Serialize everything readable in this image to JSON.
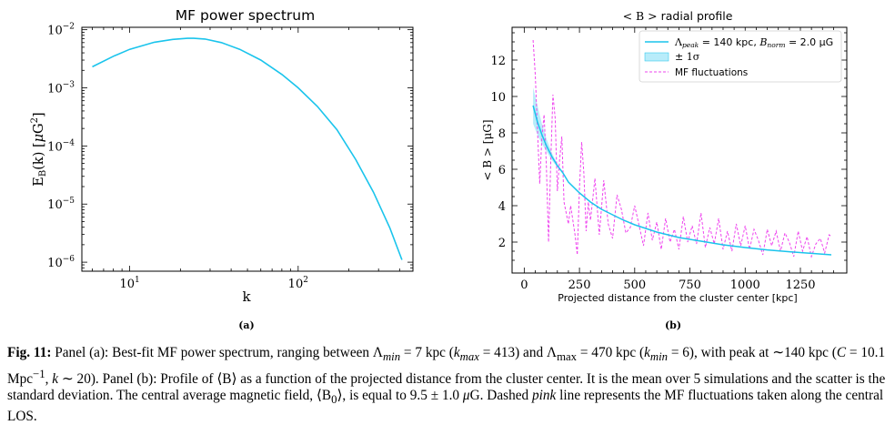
{
  "colors": {
    "model": "#1ac4ec",
    "band": "#b8ecfa",
    "fluct": "#ee44ee",
    "axis": "#000000"
  },
  "chart_data": [
    {
      "type": "line",
      "title": "MF power spectrum",
      "xlabel": "k",
      "ylabel": "E_B(k) [μG²]",
      "xscale": "log",
      "yscale": "log",
      "xlim": [
        5.2,
        480
      ],
      "ylim": [
        7e-07,
        0.011
      ],
      "xticks": [
        {
          "value": 10,
          "label": "10",
          "exp": "1"
        },
        {
          "value": 100,
          "label": "10",
          "exp": "2"
        }
      ],
      "yticks": [
        {
          "value": 0.01,
          "label": "10",
          "exp": "−2"
        },
        {
          "value": 0.001,
          "label": "10",
          "exp": "−3"
        },
        {
          "value": 0.0001,
          "label": "10",
          "exp": "−4"
        },
        {
          "value": 1e-05,
          "label": "10",
          "exp": "−5"
        },
        {
          "value": 1e-06,
          "label": "10",
          "exp": "−6"
        }
      ],
      "series": [
        {
          "x": [
            6,
            8,
            10,
            14,
            18,
            22,
            24,
            28,
            35,
            45,
            60,
            80,
            100,
            130,
            170,
            220,
            280,
            350,
            413
          ],
          "y": [
            0.0023,
            0.0035,
            0.0046,
            0.0061,
            0.0068,
            0.0071,
            0.0071,
            0.0069,
            0.006,
            0.0046,
            0.003,
            0.0017,
            0.001,
            0.00048,
            0.00019,
            5.8e-05,
            1.6e-05,
            3.9e-06,
            1.1e-06
          ]
        }
      ],
      "panel_label": "(a)"
    },
    {
      "type": "line",
      "title": "< B > radial profile",
      "xlabel": "Projected distance from the cluster center [kpc]",
      "ylabel": "< B > [μG]",
      "xlim": [
        -55,
        1460
      ],
      "ylim": [
        0.3,
        13.8
      ],
      "xticks": [
        0,
        250,
        500,
        750,
        1000,
        1250
      ],
      "yticks": [
        2,
        4,
        6,
        8,
        10,
        12
      ],
      "grid": false,
      "legend": {
        "position": "top-right",
        "entries": [
          {
            "prefix": "Λ",
            "sub": "peak",
            "mid": " = 140 kpc, ",
            "b": "B",
            "bsub": "norm",
            "suffix": " = 2.0 μG"
          },
          {
            "text": "± 1σ"
          },
          {
            "text": "MF fluctuations"
          }
        ]
      },
      "series": [
        {
          "name": "model",
          "x": [
            40,
            60,
            80,
            100,
            125,
            150,
            175,
            200,
            250,
            300,
            350,
            400,
            450,
            500,
            600,
            700,
            800,
            900,
            1000,
            1100,
            1200,
            1300,
            1390
          ],
          "y": [
            9.5,
            8.6,
            7.9,
            7.3,
            6.7,
            6.2,
            5.8,
            5.3,
            4.7,
            4.2,
            3.8,
            3.5,
            3.2,
            2.95,
            2.55,
            2.25,
            2.05,
            1.85,
            1.7,
            1.57,
            1.47,
            1.38,
            1.3
          ]
        },
        {
          "name": "band_upper",
          "x": [
            40,
            60,
            80,
            100,
            125,
            150
          ],
          "y": [
            10.5,
            9.5,
            8.5,
            7.7,
            6.9,
            6.3
          ]
        },
        {
          "name": "band_lower",
          "x": [
            40,
            60,
            80,
            100,
            125,
            150
          ],
          "y": [
            8.5,
            7.9,
            7.4,
            7.0,
            6.5,
            6.1
          ]
        },
        {
          "name": "fluctuations",
          "x": [
            40,
            50,
            60,
            70,
            80,
            90,
            100,
            110,
            120,
            130,
            140,
            150,
            160,
            170,
            180,
            190,
            200,
            210,
            220,
            230,
            240,
            250,
            260,
            270,
            280,
            290,
            300,
            320,
            340,
            360,
            380,
            400,
            420,
            440,
            460,
            480,
            500,
            520,
            540,
            560,
            580,
            600,
            620,
            640,
            660,
            680,
            700,
            720,
            740,
            760,
            780,
            800,
            820,
            840,
            860,
            880,
            900,
            920,
            940,
            960,
            980,
            1000,
            1020,
            1040,
            1060,
            1080,
            1100,
            1120,
            1140,
            1160,
            1180,
            1200,
            1220,
            1240,
            1260,
            1280,
            1300,
            1320,
            1340,
            1360,
            1380,
            1390
          ],
          "y": [
            13.1,
            11.2,
            8.2,
            5.2,
            7.8,
            9.0,
            6.2,
            2.0,
            6.4,
            10.1,
            8.8,
            4.8,
            6.5,
            7.8,
            4.2,
            3.6,
            3.0,
            4.0,
            3.2,
            2.4,
            1.3,
            5.0,
            7.5,
            5.8,
            2.6,
            4.2,
            3.2,
            5.5,
            2.4,
            5.4,
            3.0,
            2.2,
            4.6,
            3.8,
            2.5,
            2.8,
            4.0,
            2.9,
            1.8,
            3.6,
            2.1,
            3.1,
            1.6,
            3.3,
            2.0,
            2.7,
            1.6,
            3.4,
            2.0,
            2.9,
            1.9,
            3.6,
            1.7,
            2.8,
            1.9,
            3.3,
            1.6,
            2.6,
            1.5,
            3.0,
            1.8,
            2.9,
            1.6,
            2.7,
            2.1,
            1.3,
            2.7,
            1.8,
            2.6,
            1.5,
            2.5,
            2.0,
            1.2,
            2.6,
            1.5,
            2.3,
            1.2,
            1.9,
            2.2,
            1.4,
            2.4,
            2.3
          ]
        }
      ],
      "panel_label": "(b)"
    }
  ],
  "caption": {
    "prefix": "Fig. 11:",
    "html": " Panel (a): Best-fit MF power spectrum, ranging between Λ<sub><i>min</i></sub> = 7 kpc (<i>k</i><sub><i>max</i></sub> = 413) and Λ<sub>max</sub> = 470 kpc (<i>k</i><sub><i>min</i></sub> = 6), with peak at ∼140 kpc (<i>C</i> = 10.1 Mpc<sup>−1</sup>, <i>k</i> ∼ 20). Panel (b): Profile of ⟨B⟩ as a function of the projected distance from the cluster center. It is the mean over 5 simulations and the scatter is the standard deviation. The central average magnetic field, ⟨B<sub>0</sub>⟩, is equal to 9.5 ± 1.0 <i>μ</i>G. Dashed <i>pink</i> line represents the MF fluctuations taken along the central LOS."
  }
}
